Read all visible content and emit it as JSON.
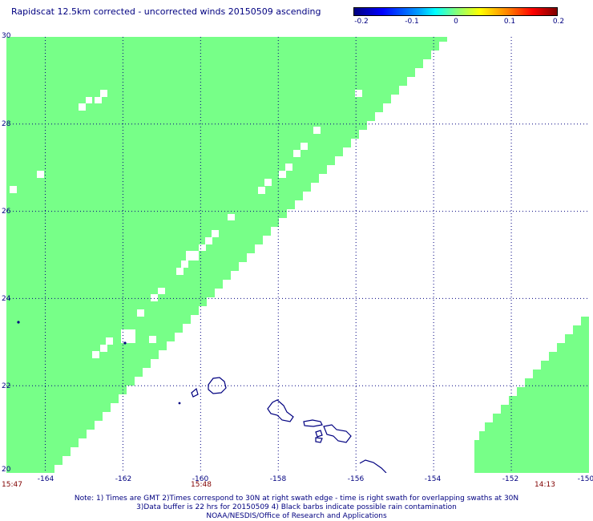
{
  "title": "Rapidscat 12.5km corrected - uncorrected winds 20150509 ascending",
  "colorbar": {
    "labels": [
      "-0.2",
      "-0.1",
      "0",
      "0.1",
      "0.2"
    ],
    "values": [
      -0.2,
      -0.1,
      0,
      0.1,
      0.2
    ]
  },
  "map": {
    "lon_range": [
      -165,
      -150
    ],
    "lat_range": [
      20,
      30
    ],
    "lon_ticks": [
      "-164",
      "-162",
      "-160",
      "-158",
      "-156",
      "-154",
      "-152",
      "-150"
    ],
    "lat_ticks": [
      "30",
      "28",
      "26",
      "24",
      "22",
      "20"
    ],
    "grid": "dotted",
    "swath_color": "#77ff88",
    "coast_color": "#000080"
  },
  "time_labels": [
    "15:47",
    "15:48",
    "14:13"
  ],
  "notes": [
    "Note: 1) Times are GMT 2)Times correspond to 30N at right swath edge - time is right swath for overlapping swaths at 30N",
    "3)Data buffer is 22 hrs for 20150509 4) Black barbs indicate possible rain contamination",
    "NOAA/NESDIS/Office of Research and Applications"
  ]
}
